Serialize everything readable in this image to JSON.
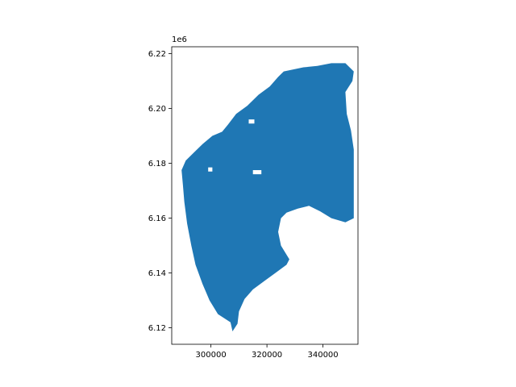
{
  "chart_data": {
    "type": "map",
    "title": "",
    "xlabel": "",
    "ylabel": "",
    "y_offset_label": "1e6",
    "fill_color": "#1f77b4",
    "xlim": [
      286000,
      352500
    ],
    "ylim": [
      6114000,
      6222500
    ],
    "x_ticks": [
      {
        "value": 300000,
        "label": "300000"
      },
      {
        "value": 320000,
        "label": "320000"
      },
      {
        "value": 340000,
        "label": "340000"
      }
    ],
    "y_ticks": [
      {
        "value": 6120000,
        "label": "6.12"
      },
      {
        "value": 6140000,
        "label": "6.14"
      },
      {
        "value": 6160000,
        "label": "6.16"
      },
      {
        "value": 6180000,
        "label": "6.18"
      },
      {
        "value": 6200000,
        "label": "6.20"
      },
      {
        "value": 6220000,
        "label": "6.22"
      }
    ],
    "region_outline": [
      [
        307700,
        6118700
      ],
      [
        307000,
        6122000
      ],
      [
        302500,
        6125000
      ],
      [
        299500,
        6130000
      ],
      [
        297000,
        6136000
      ],
      [
        294500,
        6143000
      ],
      [
        293000,
        6150000
      ],
      [
        291500,
        6158000
      ],
      [
        290500,
        6166000
      ],
      [
        290000,
        6172000
      ],
      [
        289500,
        6177500
      ],
      [
        291000,
        6181000
      ],
      [
        294000,
        6184000
      ],
      [
        297000,
        6187000
      ],
      [
        300500,
        6190000
      ],
      [
        304000,
        6191500
      ],
      [
        306000,
        6194000
      ],
      [
        309000,
        6198000
      ],
      [
        313000,
        6201000
      ],
      [
        317000,
        6205000
      ],
      [
        321000,
        6208000
      ],
      [
        324000,
        6211500
      ],
      [
        326000,
        6213500
      ],
      [
        333000,
        6215000
      ],
      [
        338000,
        6215500
      ],
      [
        343000,
        6216500
      ],
      [
        348000,
        6216500
      ],
      [
        351000,
        6213500
      ],
      [
        350500,
        6210000
      ],
      [
        348000,
        6206000
      ],
      [
        348500,
        6198000
      ],
      [
        350000,
        6192000
      ],
      [
        351000,
        6185000
      ],
      [
        351000,
        6180000
      ],
      [
        351000,
        6172000
      ],
      [
        351000,
        6166000
      ],
      [
        351000,
        6160000
      ],
      [
        348000,
        6158500
      ],
      [
        343000,
        6160000
      ],
      [
        339000,
        6162500
      ],
      [
        335000,
        6164500
      ],
      [
        331000,
        6163500
      ],
      [
        327000,
        6162000
      ],
      [
        325000,
        6160000
      ],
      [
        324000,
        6155000
      ],
      [
        325000,
        6150000
      ],
      [
        328000,
        6145000
      ],
      [
        327000,
        6143000
      ],
      [
        323000,
        6140000
      ],
      [
        319000,
        6137000
      ],
      [
        315000,
        6134000
      ],
      [
        312000,
        6130500
      ],
      [
        310000,
        6126000
      ],
      [
        309500,
        6121500
      ]
    ],
    "holes": [
      [
        [
          299000,
          6178500
        ],
        [
          300500,
          6178500
        ],
        [
          300500,
          6177000
        ],
        [
          299000,
          6177000
        ]
      ],
      [
        [
          315000,
          6177500
        ],
        [
          318000,
          6177500
        ],
        [
          318000,
          6176000
        ],
        [
          315000,
          6176000
        ]
      ],
      [
        [
          313500,
          6196000
        ],
        [
          315500,
          6196000
        ],
        [
          315500,
          6194500
        ],
        [
          313500,
          6194500
        ]
      ]
    ]
  }
}
